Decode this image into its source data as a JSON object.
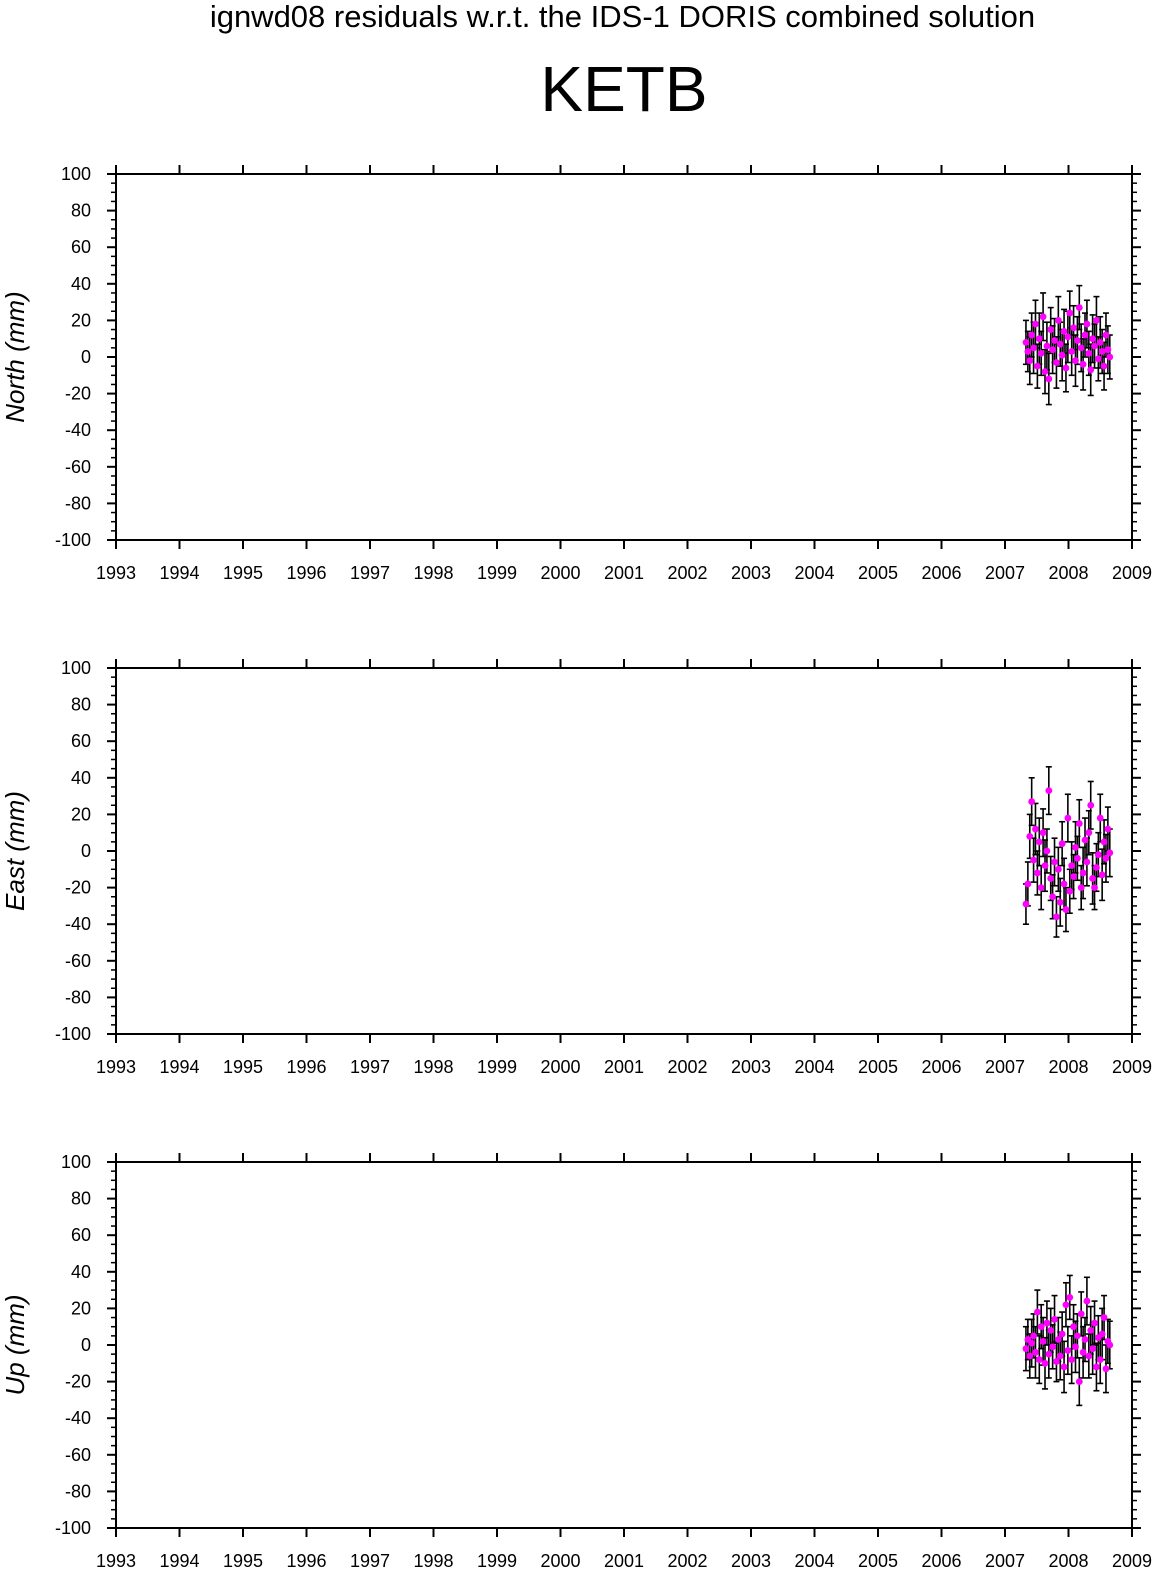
{
  "header": {
    "title": "ignwd08 residuals w.r.t. the IDS-1 DORIS combined solution",
    "station": "KETB"
  },
  "colors": {
    "point": "#ff00ff",
    "errorbar": "#000000",
    "axis": "#000000"
  },
  "chart_data": [
    {
      "type": "scatter",
      "ylabel": "North (mm)",
      "xlim": [
        1993,
        2009
      ],
      "ylim": [
        -100,
        100
      ],
      "x_ticks": [
        1993,
        1994,
        1995,
        1996,
        1997,
        1998,
        1999,
        2000,
        2001,
        2002,
        2003,
        2004,
        2005,
        2006,
        2007,
        2008,
        2009
      ],
      "y_ticks": [
        -100,
        -80,
        -60,
        -40,
        -20,
        0,
        20,
        40,
        60,
        80,
        100
      ],
      "marker": "magenta filled circle with black error bar",
      "grid": false,
      "series": [
        {
          "x": [
            2007.33,
            2007.36,
            2007.39,
            2007.42,
            2007.45,
            2007.48,
            2007.51,
            2007.54,
            2007.57,
            2007.6,
            2007.63,
            2007.66,
            2007.69,
            2007.72,
            2007.75,
            2007.78,
            2007.81,
            2007.84,
            2007.87,
            2007.9,
            2007.93,
            2007.96,
            2007.99,
            2008.02,
            2008.05,
            2008.08,
            2008.11,
            2008.14,
            2008.17,
            2008.2,
            2008.23,
            2008.26,
            2008.29,
            2008.32,
            2008.35,
            2008.38,
            2008.41,
            2008.44,
            2008.47,
            2008.5,
            2008.53,
            2008.56,
            2008.59,
            2008.62,
            2008.65
          ],
          "y": [
            8,
            3,
            -2,
            12,
            5,
            18,
            -5,
            10,
            2,
            22,
            -8,
            6,
            -12,
            15,
            4,
            9,
            -3,
            20,
            7,
            1,
            14,
            -6,
            11,
            24,
            3,
            16,
            -2,
            9,
            27,
            5,
            -4,
            12,
            18,
            2,
            -7,
            10,
            6,
            20,
            -1,
            8,
            3,
            -5,
            12,
            4,
            0
          ],
          "error": [
            12,
            11,
            13,
            12,
            14,
            13,
            12,
            14,
            12,
            13,
            12,
            13,
            14,
            12,
            13,
            12,
            14,
            13,
            12,
            14,
            12,
            13,
            14,
            12,
            13,
            12,
            14,
            13,
            12,
            13,
            14,
            12,
            13,
            12,
            14,
            13,
            12,
            13,
            12,
            14,
            12,
            13,
            12,
            13,
            12
          ]
        }
      ]
    },
    {
      "type": "scatter",
      "ylabel": "East (mm)",
      "xlim": [
        1993,
        2009
      ],
      "ylim": [
        -100,
        100
      ],
      "x_ticks": [
        1993,
        1994,
        1995,
        1996,
        1997,
        1998,
        1999,
        2000,
        2001,
        2002,
        2003,
        2004,
        2005,
        2006,
        2007,
        2008,
        2009
      ],
      "y_ticks": [
        -100,
        -80,
        -60,
        -40,
        -20,
        0,
        20,
        40,
        60,
        80,
        100
      ],
      "marker": "magenta filled circle with black error bar",
      "grid": false,
      "series": [
        {
          "x": [
            2007.33,
            2007.36,
            2007.39,
            2007.42,
            2007.45,
            2007.48,
            2007.51,
            2007.54,
            2007.57,
            2007.6,
            2007.63,
            2007.66,
            2007.69,
            2007.72,
            2007.75,
            2007.78,
            2007.81,
            2007.84,
            2007.87,
            2007.9,
            2007.93,
            2007.96,
            2007.99,
            2008.02,
            2008.05,
            2008.08,
            2008.11,
            2008.14,
            2008.17,
            2008.2,
            2008.23,
            2008.26,
            2008.29,
            2008.32,
            2008.35,
            2008.38,
            2008.41,
            2008.44,
            2008.47,
            2008.5,
            2008.53,
            2008.56,
            2008.59,
            2008.62,
            2008.65
          ],
          "y": [
            -29,
            -18,
            8,
            27,
            -5,
            12,
            -12,
            5,
            -20,
            10,
            -8,
            0,
            33,
            -15,
            -25,
            -6,
            -36,
            -10,
            -28,
            4,
            -18,
            -32,
            18,
            -22,
            -8,
            -14,
            2,
            -4,
            15,
            -20,
            -12,
            6,
            -6,
            10,
            25,
            -15,
            -20,
            -9,
            -2,
            18,
            -13,
            5,
            -4,
            12,
            -1
          ],
          "error": [
            11,
            12,
            12,
            13,
            12,
            14,
            12,
            13,
            12,
            13,
            14,
            12,
            13,
            12,
            12,
            13,
            11,
            12,
            13,
            12,
            14,
            12,
            13,
            12,
            13,
            12,
            14,
            12,
            13,
            12,
            14,
            12,
            13,
            12,
            13,
            14,
            12,
            13,
            12,
            13,
            14,
            12,
            13,
            12,
            13
          ]
        }
      ]
    },
    {
      "type": "scatter",
      "ylabel": "Up (mm)",
      "xlim": [
        1993,
        2009
      ],
      "ylim": [
        -100,
        100
      ],
      "x_ticks": [
        1993,
        1994,
        1995,
        1996,
        1997,
        1998,
        1999,
        2000,
        2001,
        2002,
        2003,
        2004,
        2005,
        2006,
        2007,
        2008,
        2009
      ],
      "y_ticks": [
        -100,
        -80,
        -60,
        -40,
        -20,
        0,
        20,
        40,
        60,
        80,
        100
      ],
      "marker": "magenta filled circle with black error bar",
      "grid": false,
      "series": [
        {
          "x": [
            2007.33,
            2007.36,
            2007.39,
            2007.42,
            2007.45,
            2007.48,
            2007.51,
            2007.54,
            2007.57,
            2007.6,
            2007.63,
            2007.66,
            2007.69,
            2007.72,
            2007.75,
            2007.78,
            2007.81,
            2007.84,
            2007.87,
            2007.9,
            2007.93,
            2007.96,
            2007.99,
            2008.02,
            2008.05,
            2008.08,
            2008.11,
            2008.14,
            2008.17,
            2008.2,
            2008.23,
            2008.26,
            2008.29,
            2008.32,
            2008.35,
            2008.38,
            2008.41,
            2008.44,
            2008.47,
            2008.5,
            2008.53,
            2008.56,
            2008.59,
            2008.62,
            2008.65
          ],
          "y": [
            -2,
            3,
            -6,
            1,
            5,
            -4,
            18,
            -8,
            10,
            2,
            -10,
            12,
            -5,
            8,
            -1,
            14,
            -9,
            3,
            -6,
            6,
            -12,
            22,
            -3,
            26,
            -8,
            10,
            -1,
            5,
            -20,
            17,
            -4,
            3,
            24,
            -6,
            8,
            -2,
            12,
            -12,
            4,
            -8,
            6,
            15,
            -13,
            2,
            0
          ],
          "error": [
            12,
            11,
            12,
            13,
            12,
            14,
            12,
            13,
            12,
            13,
            14,
            12,
            13,
            12,
            12,
            13,
            11,
            12,
            13,
            12,
            14,
            12,
            13,
            12,
            13,
            12,
            14,
            12,
            13,
            12,
            14,
            12,
            13,
            12,
            13,
            14,
            12,
            13,
            12,
            13,
            14,
            12,
            13,
            12,
            13
          ]
        }
      ]
    }
  ]
}
